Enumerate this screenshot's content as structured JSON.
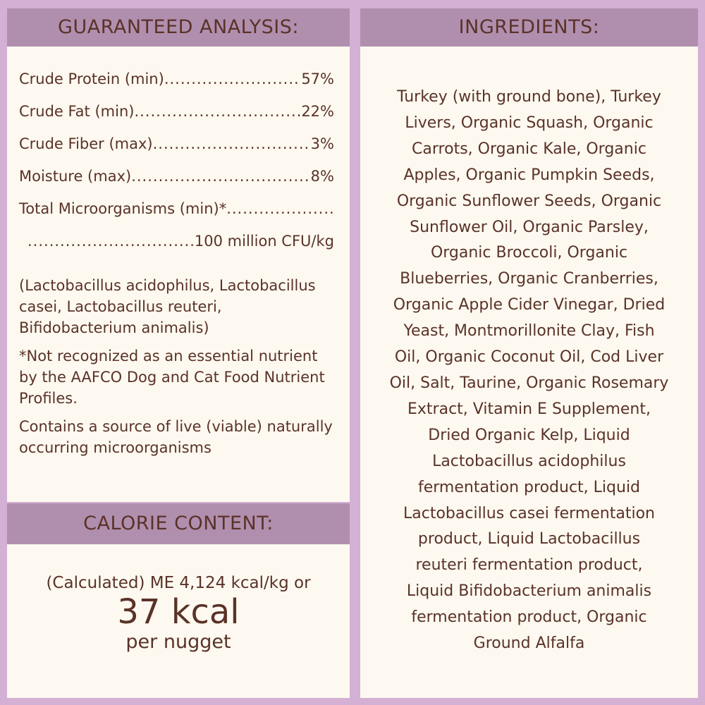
{
  "colors": {
    "background": "#d3b0d4",
    "header": "#b08fae",
    "panel": "#fdf9f0",
    "text": "#5a3228"
  },
  "analysis": {
    "title": "GUARANTEED ANALYSIS:",
    "rows": [
      {
        "label": "Crude Protein (min)",
        "value": "57%"
      },
      {
        "label": "Crude Fat (min)",
        "value": "22%"
      },
      {
        "label": "Crude Fiber (max)",
        "value": "3%"
      },
      {
        "label": "Moisture (max)",
        "value": "8%"
      },
      {
        "label": "Total Microorganisms (min)*",
        "value": ""
      },
      {
        "label": "",
        "value": "100 million CFU/kg"
      }
    ],
    "strains": "(Lactobacillus acidophilus, Lactobacillus casei, Lactobacillus reuteri, Bifidobacterium animalis)",
    "footnote": "*Not recognized as an essential nutrient by the AAFCO Dog and Cat Food Nutrient Profiles.",
    "live_note": "Contains a source of live (viable) naturally occurring microorganisms"
  },
  "calorie": {
    "title": "CALORIE CONTENT:",
    "line": "(Calculated) ME 4,124 kcal/kg or",
    "big": "37 kcal",
    "per": "per nugget"
  },
  "ingredients": {
    "title": "INGREDIENTS:",
    "lines": [
      "Turkey (with ground bone), Turkey",
      "Livers, Organic Squash, Organic",
      "Carrots, Organic Kale, Organic",
      "Apples, Organic Pumpkin Seeds,",
      "Organic Sunflower Seeds, Organic",
      "Sunflower Oil, Organic Parsley,",
      "Organic Broccoli, Organic",
      "Blueberries, Organic Cranberries,",
      "Organic Apple Cider Vinegar, Dried",
      "Yeast, Montmorillonite Clay, Fish",
      "Oil, Organic Coconut Oil, Cod Liver",
      "Oil, Salt, Taurine, Organic Rosemary",
      "Extract, Vitamin E Supplement,",
      "Dried Organic Kelp, Liquid",
      "Lactobacillus acidophilus",
      "fermentation product, Liquid",
      "Lactobacillus casei fermentation",
      "product, Liquid Lactobacillus",
      "reuteri fermentation product,",
      "Liquid Bifidobacterium animalis",
      "fermentation product, Organic",
      "Ground Alfalfa"
    ]
  }
}
